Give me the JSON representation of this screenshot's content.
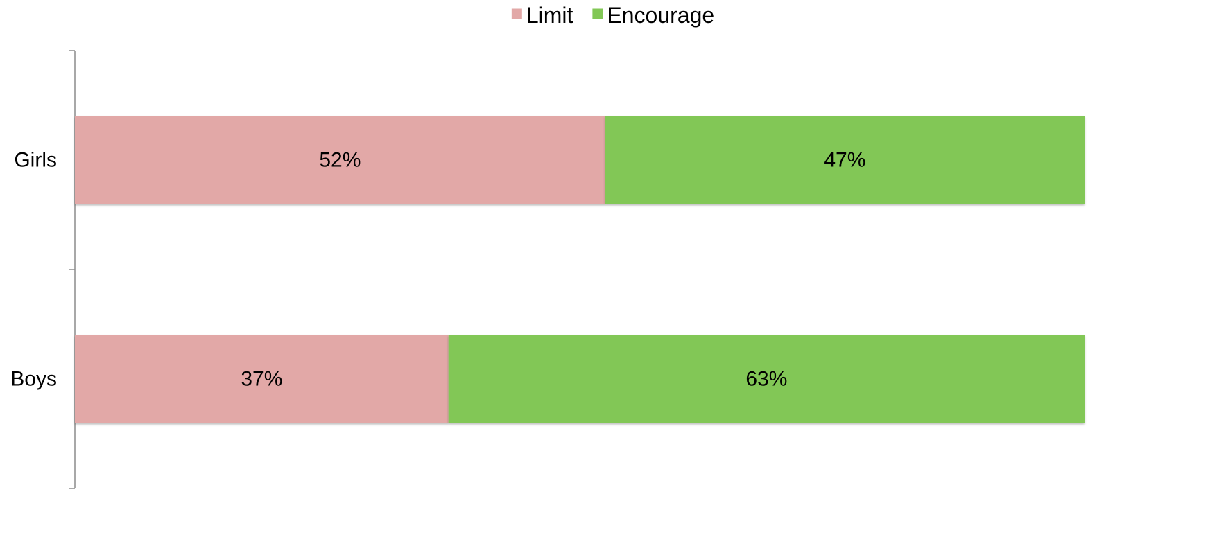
{
  "chart_data": {
    "type": "bar",
    "orientation": "horizontal",
    "stacked": true,
    "title": "",
    "xlabel": "",
    "ylabel": "",
    "categories": [
      "Girls",
      "Boys"
    ],
    "series": [
      {
        "name": "Limit",
        "color": "#e2a8a7",
        "values": [
          52,
          37
        ],
        "labels": [
          "52%",
          "37%"
        ]
      },
      {
        "name": "Encourage",
        "color": "#82c756",
        "values": [
          47,
          63
        ],
        "labels": [
          "47%",
          "63%"
        ]
      }
    ],
    "value_range": [
      0,
      100
    ],
    "unit": "%",
    "grid": false,
    "legend_position": "top-center",
    "x_axis_visible": false
  }
}
